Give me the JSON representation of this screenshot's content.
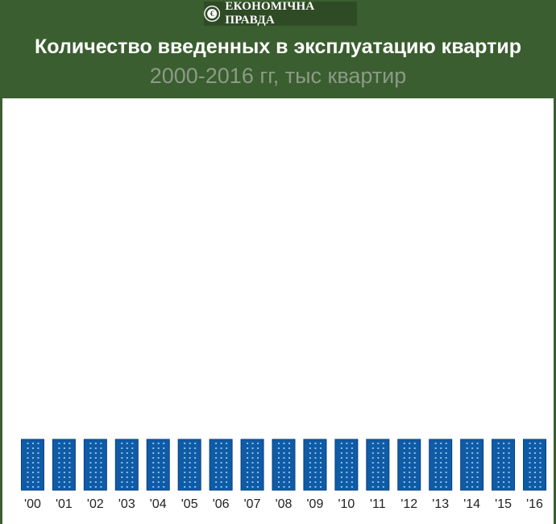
{
  "header": {
    "brand_name": "ЕКОНОМІЧНА ПРАВДА",
    "title": "Количество введенных в эксплуатацию квартир",
    "subtitle": "2000-2016 гг, тыс квартир"
  },
  "colors": {
    "header_bg": "#3a5e2f",
    "brand_bg": "#2f4b26",
    "building": "#0f5ba6",
    "building_edge": "#0a3f80",
    "window": "#8fc1ea",
    "subtitle": "#8d9a87"
  },
  "chart_data": {
    "type": "bar",
    "title": "Количество введенных в эксплуатацию квартир",
    "subtitle": "2000-2016 гг, тыс квартир",
    "categories": [
      "'00",
      "'01",
      "'02",
      "'03",
      "'04",
      "'05",
      "'06",
      "'07",
      "'08",
      "'09",
      "'10",
      "'11",
      "'12",
      "'13",
      "'14",
      "'15",
      "'16"
    ],
    "values": [
      null,
      null,
      null,
      null,
      null,
      null,
      null,
      null,
      null,
      null,
      null,
      null,
      null,
      null,
      null,
      null,
      null
    ],
    "xlabel": "",
    "ylabel": "",
    "grid": false,
    "legend": "none"
  }
}
